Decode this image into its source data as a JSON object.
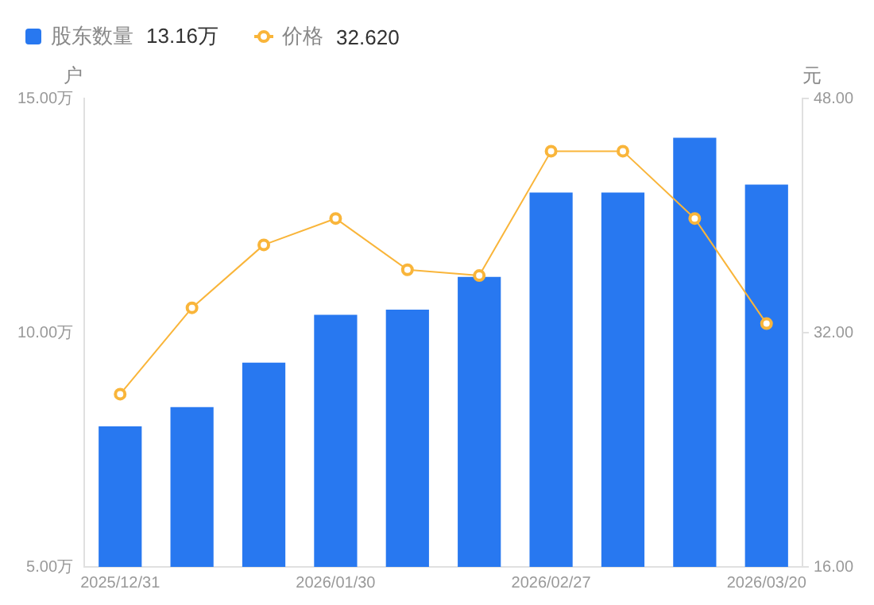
{
  "chart_data": {
    "type": "bar",
    "categories": [
      "2025/12/31",
      null,
      null,
      "2026/01/30",
      null,
      null,
      "2026/02/27",
      null,
      null,
      "2026/03/20"
    ],
    "series": [
      {
        "name": "股东数量",
        "color": "#2878f0",
        "values": [
          8.0,
          8.41,
          9.36,
          10.38,
          10.49,
          11.19,
          12.99,
          12.99,
          14.16,
          13.16
        ]
      },
      {
        "name": "价格",
        "type": "line",
        "axis": "y2",
        "color": "#f9b53a",
        "marker": "circle",
        "values": [
          27.8,
          33.7,
          38.0,
          39.8,
          36.3,
          35.9,
          44.4,
          44.4,
          39.8,
          32.62
        ]
      }
    ],
    "ylabel": "户",
    "y2label": "元",
    "ylim": [
      5,
      15
    ],
    "yticks": [
      {
        "value": 5,
        "label": "5.00万"
      },
      {
        "value": 10,
        "label": "10.00万"
      },
      {
        "value": 15,
        "label": "15.00万"
      }
    ],
    "y2lim": [
      16,
      48
    ],
    "y2ticks": [
      {
        "value": 16,
        "label": "16.00"
      },
      {
        "value": 32,
        "label": "32.00"
      },
      {
        "value": 48,
        "label": "48.00"
      }
    ],
    "annotations": [
      "13.16万",
      "32.620"
    ],
    "legend": "top left",
    "grid": false
  }
}
